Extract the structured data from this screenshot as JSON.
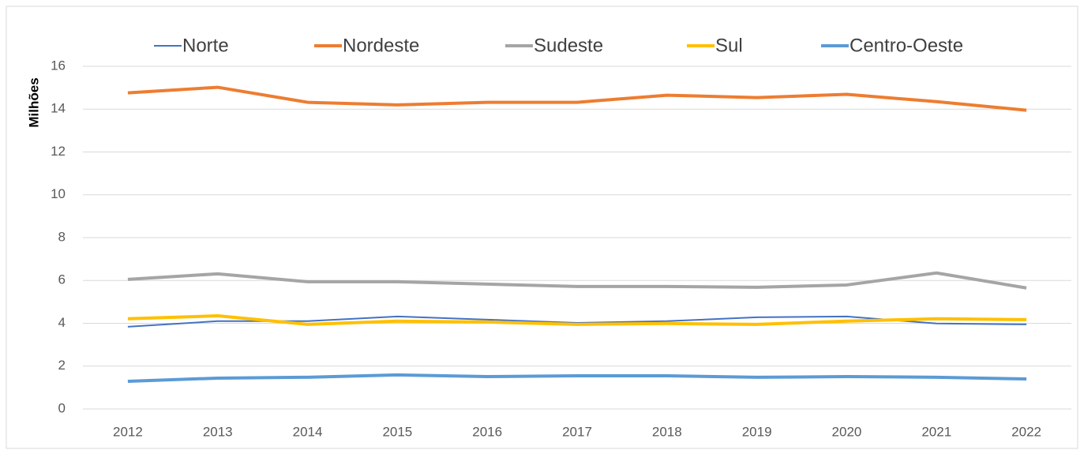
{
  "chart_data": {
    "type": "line",
    "y_label": "Milhões",
    "categories": [
      "2012",
      "2013",
      "2014",
      "2015",
      "2016",
      "2017",
      "2018",
      "2019",
      "2020",
      "2021",
      "2022"
    ],
    "series": [
      {
        "name": "Norte",
        "color": "#4472c4",
        "values": [
          3.84,
          4.1,
          4.1,
          4.32,
          4.17,
          4.02,
          4.1,
          4.28,
          4.32,
          3.99,
          3.95
        ]
      },
      {
        "name": "Nordeste",
        "color": "#ed7d31",
        "values": [
          14.76,
          15.02,
          14.32,
          14.2,
          14.32,
          14.32,
          14.65,
          14.54,
          14.69,
          14.35,
          13.95
        ]
      },
      {
        "name": "Sudeste",
        "color": "#a5a5a5",
        "values": [
          6.05,
          6.31,
          5.94,
          5.94,
          5.83,
          5.72,
          5.72,
          5.68,
          5.79,
          6.35,
          5.65
        ]
      },
      {
        "name": "Sul",
        "color": "#ffc000",
        "values": [
          4.21,
          4.35,
          3.95,
          4.1,
          4.06,
          3.95,
          3.99,
          3.95,
          4.1,
          4.21,
          4.17
        ]
      },
      {
        "name": "Centro-Oeste",
        "color": "#5b9bd5",
        "values": [
          1.29,
          1.44,
          1.48,
          1.59,
          1.51,
          1.55,
          1.55,
          1.48,
          1.51,
          1.48,
          1.4
        ]
      }
    ],
    "ylim": [
      0,
      16
    ],
    "yticks": [
      0,
      2,
      4,
      6,
      8,
      10,
      12,
      14,
      16
    ],
    "grid": true,
    "legend": "top"
  }
}
